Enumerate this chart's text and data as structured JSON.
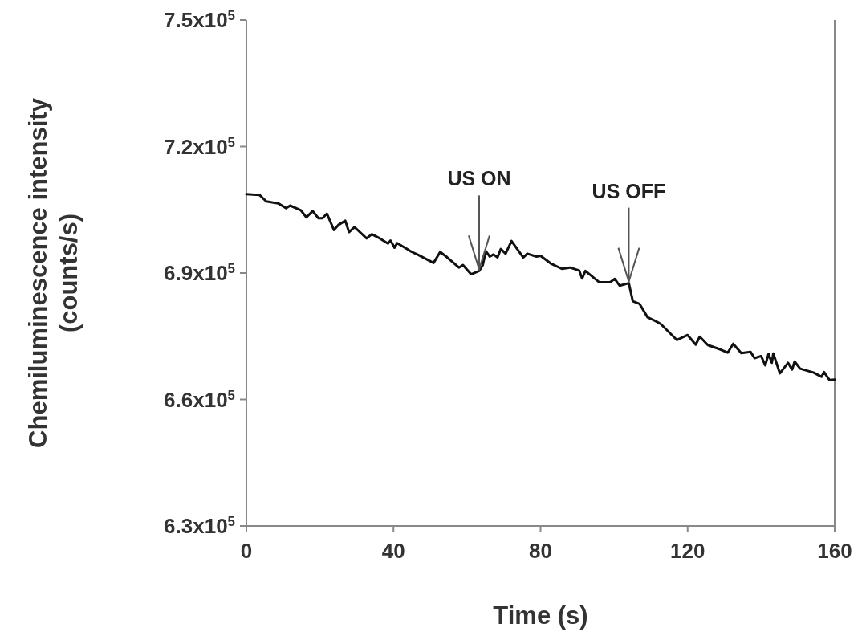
{
  "chart_data": {
    "type": "line",
    "xlabel": "Time (s)",
    "ylabel": "Chemiluminescence intensity\n(counts/s)",
    "xlim": [
      0,
      160
    ],
    "xticks": [
      0,
      40,
      80,
      120,
      160
    ],
    "ylim": [
      630000,
      750000
    ],
    "yticks": [
      {
        "value": 630000,
        "label": "6.3x10$^{5}$"
      },
      {
        "value": 660000,
        "label": "6.6x10$^{5}$"
      },
      {
        "value": 690000,
        "label": "6.9x10$^{5}$"
      },
      {
        "value": 720000,
        "label": "7.2x10$^{5}$"
      },
      {
        "value": 750000,
        "label": "7.5x10$^{5}$"
      }
    ],
    "grid": false,
    "line_style": "solid",
    "annotations": [
      {
        "text": "US ON",
        "x": 63.3,
        "y": 690500
      },
      {
        "text": "US OFF",
        "x": 104,
        "y": 687600
      }
    ],
    "series": [
      {
        "color": "#111111",
        "x": [
          0,
          3.6,
          5.4,
          8.7,
          10.8,
          11.9,
          14.8,
          16.3,
          18,
          19.6,
          20.7,
          21.9,
          23.8,
          25,
          26.9,
          27.9,
          29.4,
          32.7,
          34.1,
          36.3,
          38.5,
          39.2,
          40.3,
          41,
          45,
          46.5,
          50.9,
          52.7,
          54.5,
          57.8,
          58.9,
          61.1,
          63.3,
          64.3,
          65.1,
          66.2,
          67.2,
          68.3,
          69.2,
          70.5,
          72.1,
          75.3,
          76.4,
          78.9,
          80,
          82.9,
          85.8,
          88,
          90.5,
          91.3,
          92.2,
          96,
          98.9,
          100.2,
          101.5,
          104,
          105.1,
          106.9,
          109.1,
          111.3,
          112.7,
          117.1,
          120,
          122.2,
          123.3,
          125.5,
          128.8,
          130.9,
          132.4,
          134.6,
          137.1,
          138.2,
          140,
          141.1,
          142,
          142.9,
          143.3,
          145.1,
          147.3,
          148.4,
          149.1,
          150.6,
          154.2,
          156.4,
          157.1,
          158.6,
          160
        ],
        "values": [
          708700,
          708500,
          707000,
          706500,
          705400,
          706000,
          704900,
          703200,
          704700,
          703000,
          703000,
          704100,
          700200,
          701400,
          702400,
          699700,
          700900,
          698200,
          699200,
          698200,
          697000,
          697700,
          696000,
          697100,
          695000,
          694400,
          692400,
          695000,
          693800,
          691300,
          691900,
          689700,
          690500,
          691900,
          695200,
          693900,
          694400,
          693700,
          695700,
          694600,
          697600,
          693700,
          694600,
          693900,
          694100,
          692200,
          691000,
          691300,
          690600,
          688700,
          690500,
          687800,
          687800,
          688600,
          687000,
          687600,
          683300,
          682700,
          679500,
          678600,
          677900,
          674100,
          675300,
          673000,
          674900,
          672900,
          671900,
          671100,
          673200,
          671000,
          671300,
          669800,
          670300,
          668100,
          670800,
          668700,
          670900,
          666200,
          668700,
          667100,
          669000,
          667300,
          666400,
          665400,
          666500,
          664600,
          664700
        ]
      }
    ]
  }
}
